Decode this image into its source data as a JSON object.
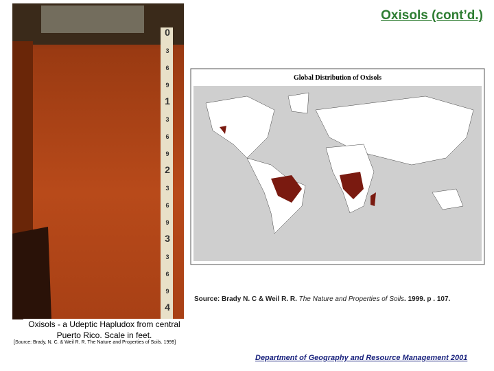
{
  "header": {
    "title": "Oxisols (cont’d.)"
  },
  "photo": {
    "ruler_labels": [
      "0",
      "3",
      "6",
      "9",
      "1",
      "3",
      "6",
      "9",
      "2",
      "3",
      "6",
      "9",
      "3",
      "3",
      "6",
      "9",
      "4"
    ],
    "caption": "Oxisols - a Udeptic Hapludox from central Puerto Rico. Scale in feet.",
    "source": "[Source: Brady, N. C. & Weil R. R. The Nature and Properties of Soils. 1999]"
  },
  "map": {
    "title": "Global Distribution of Oxisols",
    "source": {
      "prefix": "Source: Brady N. C & Weil R. R. ",
      "book": "The Nature and Properties of Soils",
      "suffix": ". 1999. p . 107."
    }
  },
  "footer": "Department of Geography and Resource Management 2001"
}
